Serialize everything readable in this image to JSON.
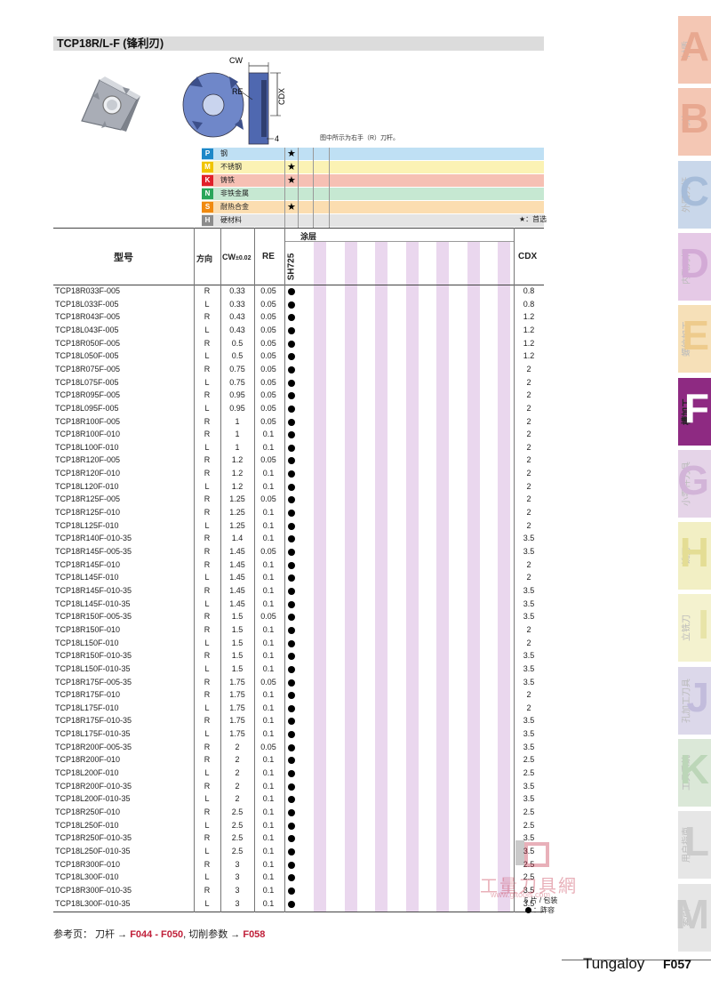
{
  "title": "TCP18R/L-F (锋利刃)",
  "figure": {
    "cw_label": "CW",
    "re_label": "RE",
    "cdx_label": "CDX",
    "dim_4": "4",
    "note": "图中所示为右手（R）刀杆。"
  },
  "materials": [
    {
      "code": "P",
      "name": "钢",
      "star": "★",
      "badge_color": "#1e88c8",
      "row_color": "#bfe0f4"
    },
    {
      "code": "M",
      "name": "不锈钢",
      "star": "★",
      "badge_color": "#f0c400",
      "row_color": "#fbf2b4"
    },
    {
      "code": "K",
      "name": "铸铁",
      "star": "★",
      "badge_color": "#e0202a",
      "row_color": "#f6c0b4"
    },
    {
      "code": "N",
      "name": "非铁金属",
      "star": "",
      "badge_color": "#2aa65a",
      "row_color": "#c6e8d2"
    },
    {
      "code": "S",
      "name": "耐热合金",
      "star": "★",
      "badge_color": "#f08a10",
      "row_color": "#fbddb0"
    },
    {
      "code": "H",
      "name": "硬材料",
      "star": "",
      "badge_color": "#8c8c8c",
      "row_color": "#e4e4e4"
    }
  ],
  "preferred_note": "★：首选",
  "headers": {
    "model": "型号",
    "dir": "方向",
    "cw": "CW",
    "cw_tol": "±0.02",
    "re": "RE",
    "coating": "涂层",
    "grade": "SH725",
    "cdx": "CDX"
  },
  "rows": [
    {
      "model": "TCP18R033F-005",
      "dir": "R",
      "cw": "0.33",
      "re": "0.05",
      "cdx": "0.8"
    },
    {
      "model": "TCP18L033F-005",
      "dir": "L",
      "cw": "0.33",
      "re": "0.05",
      "cdx": "0.8"
    },
    {
      "model": "TCP18R043F-005",
      "dir": "R",
      "cw": "0.43",
      "re": "0.05",
      "cdx": "1.2"
    },
    {
      "model": "TCP18L043F-005",
      "dir": "L",
      "cw": "0.43",
      "re": "0.05",
      "cdx": "1.2"
    },
    {
      "model": "TCP18R050F-005",
      "dir": "R",
      "cw": "0.5",
      "re": "0.05",
      "cdx": "1.2"
    },
    {
      "model": "TCP18L050F-005",
      "dir": "L",
      "cw": "0.5",
      "re": "0.05",
      "cdx": "1.2"
    },
    {
      "model": "TCP18R075F-005",
      "dir": "R",
      "cw": "0.75",
      "re": "0.05",
      "cdx": "2"
    },
    {
      "model": "TCP18L075F-005",
      "dir": "L",
      "cw": "0.75",
      "re": "0.05",
      "cdx": "2"
    },
    {
      "model": "TCP18R095F-005",
      "dir": "R",
      "cw": "0.95",
      "re": "0.05",
      "cdx": "2"
    },
    {
      "model": "TCP18L095F-005",
      "dir": "L",
      "cw": "0.95",
      "re": "0.05",
      "cdx": "2"
    },
    {
      "model": "TCP18R100F-005",
      "dir": "R",
      "cw": "1",
      "re": "0.05",
      "cdx": "2"
    },
    {
      "model": "TCP18R100F-010",
      "dir": "R",
      "cw": "1",
      "re": "0.1",
      "cdx": "2"
    },
    {
      "model": "TCP18L100F-010",
      "dir": "L",
      "cw": "1",
      "re": "0.1",
      "cdx": "2"
    },
    {
      "model": "TCP18R120F-005",
      "dir": "R",
      "cw": "1.2",
      "re": "0.05",
      "cdx": "2"
    },
    {
      "model": "TCP18R120F-010",
      "dir": "R",
      "cw": "1.2",
      "re": "0.1",
      "cdx": "2"
    },
    {
      "model": "TCP18L120F-010",
      "dir": "L",
      "cw": "1.2",
      "re": "0.1",
      "cdx": "2"
    },
    {
      "model": "TCP18R125F-005",
      "dir": "R",
      "cw": "1.25",
      "re": "0.05",
      "cdx": "2"
    },
    {
      "model": "TCP18R125F-010",
      "dir": "R",
      "cw": "1.25",
      "re": "0.1",
      "cdx": "2"
    },
    {
      "model": "TCP18L125F-010",
      "dir": "L",
      "cw": "1.25",
      "re": "0.1",
      "cdx": "2"
    },
    {
      "model": "TCP18R140F-010-35",
      "dir": "R",
      "cw": "1.4",
      "re": "0.1",
      "cdx": "3.5"
    },
    {
      "model": "TCP18R145F-005-35",
      "dir": "R",
      "cw": "1.45",
      "re": "0.05",
      "cdx": "3.5"
    },
    {
      "model": "TCP18R145F-010",
      "dir": "R",
      "cw": "1.45",
      "re": "0.1",
      "cdx": "2"
    },
    {
      "model": "TCP18L145F-010",
      "dir": "L",
      "cw": "1.45",
      "re": "0.1",
      "cdx": "2"
    },
    {
      "model": "TCP18R145F-010-35",
      "dir": "R",
      "cw": "1.45",
      "re": "0.1",
      "cdx": "3.5"
    },
    {
      "model": "TCP18L145F-010-35",
      "dir": "L",
      "cw": "1.45",
      "re": "0.1",
      "cdx": "3.5"
    },
    {
      "model": "TCP18R150F-005-35",
      "dir": "R",
      "cw": "1.5",
      "re": "0.05",
      "cdx": "3.5"
    },
    {
      "model": "TCP18R150F-010",
      "dir": "R",
      "cw": "1.5",
      "re": "0.1",
      "cdx": "2"
    },
    {
      "model": "TCP18L150F-010",
      "dir": "L",
      "cw": "1.5",
      "re": "0.1",
      "cdx": "2"
    },
    {
      "model": "TCP18R150F-010-35",
      "dir": "R",
      "cw": "1.5",
      "re": "0.1",
      "cdx": "3.5"
    },
    {
      "model": "TCP18L150F-010-35",
      "dir": "L",
      "cw": "1.5",
      "re": "0.1",
      "cdx": "3.5"
    },
    {
      "model": "TCP18R175F-005-35",
      "dir": "R",
      "cw": "1.75",
      "re": "0.05",
      "cdx": "3.5"
    },
    {
      "model": "TCP18R175F-010",
      "dir": "R",
      "cw": "1.75",
      "re": "0.1",
      "cdx": "2"
    },
    {
      "model": "TCP18L175F-010",
      "dir": "L",
      "cw": "1.75",
      "re": "0.1",
      "cdx": "2"
    },
    {
      "model": "TCP18R175F-010-35",
      "dir": "R",
      "cw": "1.75",
      "re": "0.1",
      "cdx": "3.5"
    },
    {
      "model": "TCP18L175F-010-35",
      "dir": "L",
      "cw": "1.75",
      "re": "0.1",
      "cdx": "3.5"
    },
    {
      "model": "TCP18R200F-005-35",
      "dir": "R",
      "cw": "2",
      "re": "0.05",
      "cdx": "3.5"
    },
    {
      "model": "TCP18R200F-010",
      "dir": "R",
      "cw": "2",
      "re": "0.1",
      "cdx": "2.5"
    },
    {
      "model": "TCP18L200F-010",
      "dir": "L",
      "cw": "2",
      "re": "0.1",
      "cdx": "2.5"
    },
    {
      "model": "TCP18R200F-010-35",
      "dir": "R",
      "cw": "2",
      "re": "0.1",
      "cdx": "3.5"
    },
    {
      "model": "TCP18L200F-010-35",
      "dir": "L",
      "cw": "2",
      "re": "0.1",
      "cdx": "3.5"
    },
    {
      "model": "TCP18R250F-010",
      "dir": "R",
      "cw": "2.5",
      "re": "0.1",
      "cdx": "2.5"
    },
    {
      "model": "TCP18L250F-010",
      "dir": "L",
      "cw": "2.5",
      "re": "0.1",
      "cdx": "2.5"
    },
    {
      "model": "TCP18R250F-010-35",
      "dir": "R",
      "cw": "2.5",
      "re": "0.1",
      "cdx": "3.5"
    },
    {
      "model": "TCP18L250F-010-35",
      "dir": "L",
      "cw": "2.5",
      "re": "0.1",
      "cdx": "3.5"
    },
    {
      "model": "TCP18R300F-010",
      "dir": "R",
      "cw": "3",
      "re": "0.1",
      "cdx": "2.5"
    },
    {
      "model": "TCP18L300F-010",
      "dir": "L",
      "cw": "3",
      "re": "0.1",
      "cdx": "2.5"
    },
    {
      "model": "TCP18R300F-010-35",
      "dir": "R",
      "cw": "3",
      "re": "0.1",
      "cdx": "3.5"
    },
    {
      "model": "TCP18L300F-010-35",
      "dir": "L",
      "cw": "3",
      "re": "0.1",
      "cdx": "3.5"
    }
  ],
  "legend": {
    "pack": "5 片 / 包装",
    "stock": "：阵容"
  },
  "reference": {
    "prefix": "参考页： 刀杆 →",
    "holder_pages": "F044 - F050",
    "mid": ", 切削参数 →",
    "param_page": "F058"
  },
  "watermark": {
    "text": "工量刀具網",
    "url": "www.gltools.com"
  },
  "footer": {
    "brand": "Tungaloy",
    "page": "F057"
  },
  "side_tabs": [
    {
      "letter": "A",
      "label": "材质",
      "color": "#f4c7b4",
      "text_color": "#e8a890",
      "active": false
    },
    {
      "letter": "B",
      "label": "刀片",
      "color": "#f4c7b4",
      "text_color": "#e8a890",
      "active": false
    },
    {
      "letter": "C",
      "label": "外圆刀杆",
      "color": "#c9d7ea",
      "text_color": "#a6bcd9",
      "active": false
    },
    {
      "letter": "D",
      "label": "内孔刀杆",
      "color": "#e5c9e6",
      "text_color": "#d3aad6",
      "active": false
    },
    {
      "letter": "E",
      "label": "螺纹加工",
      "color": "#f6e0b8",
      "text_color": "#eecb8c",
      "active": false
    },
    {
      "letter": "F",
      "label": "槽加工",
      "color": "#8e2a82",
      "text_color": "#ffffff",
      "active": true
    },
    {
      "letter": "G",
      "label": "小零件刀具",
      "color": "#e5d4e8",
      "text_color": "#d2b4d8",
      "active": false
    },
    {
      "letter": "H",
      "label": "铣刀",
      "color": "#f2efc4",
      "text_color": "#e4dd94",
      "active": false
    },
    {
      "letter": "I",
      "label": "立铣刀",
      "color": "#f4f2cf",
      "text_color": "#e8e4a8",
      "active": false
    },
    {
      "letter": "J",
      "label": "孔加工刀具",
      "color": "#dcd8ea",
      "text_color": "#c2bcdc",
      "active": false
    },
    {
      "letter": "K",
      "label": "工具系统",
      "color": "#dbe8d8",
      "text_color": "#bcd6b8",
      "active": false
    },
    {
      "letter": "L",
      "label": "用户指南",
      "color": "#e6e6e6",
      "text_color": "#cccccc",
      "active": false
    },
    {
      "letter": "M",
      "label": "索引",
      "color": "#e6e6e6",
      "text_color": "#cccccc",
      "active": false
    }
  ]
}
